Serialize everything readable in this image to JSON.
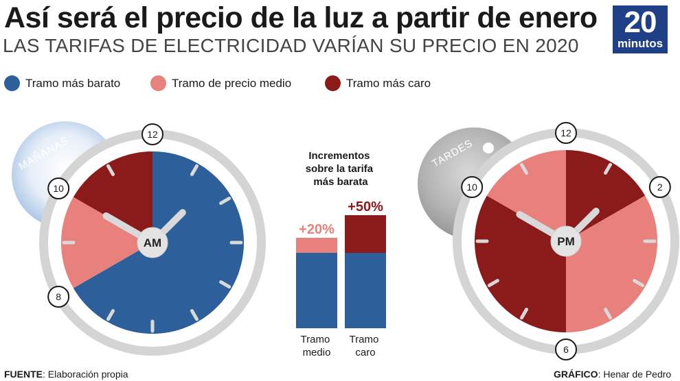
{
  "header": {
    "title": "Así será el precio de la luz a partir de enero",
    "subtitle": "LAS TARIFAS DE ELECTRICIDAD VARÍAN SU PRECIO EN 2020"
  },
  "logo": {
    "number": "20",
    "word": "minutos"
  },
  "legend": [
    {
      "label": "Tramo más barato",
      "color": "#2d5f9a"
    },
    {
      "label": "Tramo de precio medio",
      "color": "#e8807b"
    },
    {
      "label": "Tramo más caro",
      "color": "#8b1a1a"
    }
  ],
  "clocks": {
    "am": {
      "center_label": "AM",
      "badge": "MAÑANAS",
      "hour_labels": [
        "12",
        "10",
        "8"
      ],
      "segments": [
        {
          "from_hour": 0,
          "to_hour": 8,
          "tier": "barato"
        },
        {
          "from_hour": 8,
          "to_hour": 10,
          "tier": "medio"
        },
        {
          "from_hour": 10,
          "to_hour": 12,
          "tier": "caro"
        }
      ]
    },
    "pm": {
      "center_label": "PM",
      "badge": "TARDES",
      "hour_labels": [
        "12",
        "2",
        "6",
        "10"
      ],
      "segments": [
        {
          "from_hour": 0,
          "to_hour": 2,
          "tier": "caro"
        },
        {
          "from_hour": 2,
          "to_hour": 6,
          "tier": "medio"
        },
        {
          "from_hour": 6,
          "to_hour": 10,
          "tier": "caro"
        },
        {
          "from_hour": 10,
          "to_hour": 12,
          "tier": "medio"
        }
      ]
    }
  },
  "chart_data": {
    "type": "bar",
    "title": "Incrementos sobre la tarifa más barata",
    "title_lines": [
      "Incrementos",
      "sobre la tarifa",
      "más barata"
    ],
    "categories": [
      "Tramo medio",
      "Tramo caro"
    ],
    "category_lines": [
      [
        "Tramo",
        "medio"
      ],
      [
        "Tramo",
        "caro"
      ]
    ],
    "series": [
      {
        "name": "Tramo más barato",
        "values": [
          100,
          100
        ]
      },
      {
        "name": "Incremento",
        "values": [
          20,
          50
        ]
      }
    ],
    "labels": [
      "+20%",
      "+50%"
    ],
    "ylim": [
      0,
      150
    ]
  },
  "footer": {
    "source_label": "FUENTE",
    "source_value": ": Elaboración propia",
    "credit_label": "GRÁFICO",
    "credit_value": ": Henar de Pedro"
  }
}
